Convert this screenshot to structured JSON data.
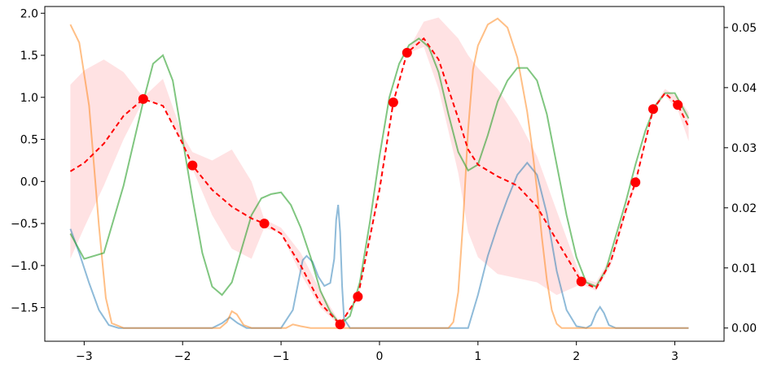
{
  "chart_data": {
    "type": "line",
    "title": "",
    "xlabel": "",
    "ylabel": "",
    "y2label": "",
    "xlim": [
      -3.4,
      3.5
    ],
    "ylim": [
      -1.9,
      2.08
    ],
    "y2lim": [
      -0.0022,
      0.0535
    ],
    "xticks": [
      -3,
      -2,
      -1,
      0,
      1,
      2,
      3
    ],
    "xtick_labels": [
      "−3",
      "−2",
      "−1",
      "0",
      "1",
      "2",
      "3"
    ],
    "yticks": [
      -1.5,
      -1.0,
      -0.5,
      0.0,
      0.5,
      1.0,
      1.5,
      2.0
    ],
    "ytick_labels": [
      "−1.5",
      "−1.0",
      "−0.5",
      "0.0",
      "0.5",
      "1.0",
      "1.5",
      "2.0"
    ],
    "y2ticks": [
      0.0,
      0.01,
      0.02,
      0.03,
      0.04,
      0.05
    ],
    "y2tick_labels": [
      "0.00",
      "0.01",
      "0.02",
      "0.03",
      "0.04",
      "0.05"
    ],
    "grid": false,
    "colors": {
      "mean": "#ff0000",
      "band": "#ffb6b9",
      "green": "#2ca02c",
      "blue": "#1f77b4",
      "orange": "#ff7f0e",
      "points": "#ff0000"
    },
    "observations": {
      "x": [
        -2.4,
        -1.9,
        -1.17,
        -0.4,
        -0.22,
        0.14,
        0.28,
        2.05,
        2.6,
        2.78,
        3.03
      ],
      "y": [
        0.98,
        0.19,
        -0.5,
        -1.7,
        -1.37,
        0.94,
        1.53,
        -1.19,
        -0.01,
        0.86,
        0.91
      ]
    },
    "series": [
      {
        "x": [
          -3.14,
          -3.0,
          -2.8,
          -2.6,
          -2.4,
          -2.2,
          -2.0,
          -1.9,
          -1.7,
          -1.5,
          -1.3,
          -1.17,
          -1.0,
          -0.8,
          -0.6,
          -0.4,
          -0.22,
          0.0,
          0.14,
          0.28,
          0.45,
          0.6,
          0.8,
          0.9,
          1.0,
          1.2,
          1.4,
          1.6,
          1.8,
          2.05,
          2.2,
          2.35,
          2.5,
          2.6,
          2.78,
          2.9,
          3.03,
          3.14
        ],
        "y": [
          0.12,
          0.22,
          0.45,
          0.78,
          0.98,
          0.9,
          0.45,
          0.19,
          -0.1,
          -0.3,
          -0.44,
          -0.5,
          -0.62,
          -1.0,
          -1.45,
          -1.7,
          -1.37,
          -0.1,
          0.94,
          1.53,
          1.7,
          1.45,
          0.75,
          0.38,
          0.2,
          0.06,
          -0.05,
          -0.3,
          -0.7,
          -1.19,
          -1.27,
          -0.95,
          -0.35,
          -0.01,
          0.86,
          1.05,
          0.91,
          0.65
        ],
        "y_lower": [
          -0.92,
          -0.55,
          -0.05,
          0.5,
          0.96,
          0.92,
          0.45,
          0.15,
          -0.4,
          -0.8,
          -0.92,
          -0.55,
          -0.62,
          -1.1,
          -1.5,
          -1.72,
          -1.38,
          -0.1,
          0.93,
          1.52,
          1.6,
          1.1,
          0.1,
          -0.6,
          -0.9,
          -1.1,
          -1.15,
          -1.2,
          -1.35,
          -1.22,
          -1.3,
          -1.0,
          -0.4,
          -0.05,
          0.85,
          1.02,
          0.85,
          0.48
        ],
        "y_upper": [
          1.15,
          1.32,
          1.45,
          1.3,
          1.0,
          1.22,
          0.55,
          0.35,
          0.25,
          0.38,
          0.0,
          -0.45,
          -0.55,
          -0.85,
          -1.3,
          -1.68,
          -1.35,
          0.0,
          0.95,
          1.54,
          1.9,
          1.95,
          1.7,
          1.5,
          1.35,
          1.1,
          0.75,
          0.3,
          -0.35,
          -1.15,
          -1.2,
          -0.9,
          -0.3,
          0.03,
          0.88,
          1.1,
          1.0,
          0.82
        ],
        "axis": "left"
      },
      {
        "x": [
          -3.14,
          -3.0,
          -2.8,
          -2.6,
          -2.4,
          -2.3,
          -2.2,
          -2.1,
          -2.0,
          -1.9,
          -1.8,
          -1.7,
          -1.6,
          -1.5,
          -1.4,
          -1.3,
          -1.2,
          -1.1,
          -1.0,
          -0.9,
          -0.8,
          -0.7,
          -0.6,
          -0.5,
          -0.4,
          -0.3,
          -0.2,
          -0.1,
          0.0,
          0.1,
          0.2,
          0.3,
          0.4,
          0.5,
          0.6,
          0.7,
          0.8,
          0.9,
          1.0,
          1.1,
          1.2,
          1.3,
          1.4,
          1.5,
          1.6,
          1.7,
          1.8,
          1.9,
          2.0,
          2.1,
          2.2,
          2.3,
          2.4,
          2.5,
          2.6,
          2.7,
          2.8,
          2.9,
          3.0,
          3.14
        ],
        "y": [
          -0.62,
          -0.92,
          -0.85,
          -0.05,
          0.95,
          1.4,
          1.5,
          1.2,
          0.5,
          -0.2,
          -0.85,
          -1.25,
          -1.35,
          -1.2,
          -0.8,
          -0.4,
          -0.2,
          -0.15,
          -0.13,
          -0.28,
          -0.55,
          -0.9,
          -1.3,
          -1.55,
          -1.7,
          -1.6,
          -1.2,
          -0.5,
          0.3,
          1.0,
          1.4,
          1.62,
          1.7,
          1.6,
          1.3,
          0.8,
          0.35,
          0.13,
          0.2,
          0.55,
          0.95,
          1.2,
          1.35,
          1.35,
          1.2,
          0.8,
          0.2,
          -0.4,
          -0.9,
          -1.2,
          -1.25,
          -1.05,
          -0.65,
          -0.25,
          0.2,
          0.6,
          0.9,
          1.05,
          1.05,
          0.75
        ],
        "axis": "left"
      },
      {
        "x": [
          -3.14,
          -3.05,
          -2.95,
          -2.85,
          -2.75,
          -2.65,
          -2.5,
          -2.0,
          -1.7,
          -1.6,
          -1.52,
          -1.44,
          -1.35,
          -1.3,
          -1.0,
          -0.88,
          -0.82,
          -0.78,
          -0.74,
          -0.68,
          -0.62,
          -0.56,
          -0.5,
          -0.46,
          -0.44,
          -0.42,
          -0.4,
          -0.38,
          -0.36,
          -0.3,
          0.0,
          0.5,
          0.9,
          1.0,
          1.1,
          1.2,
          1.3,
          1.4,
          1.5,
          1.6,
          1.7,
          1.8,
          1.9,
          2.0,
          2.1,
          2.15,
          2.2,
          2.24,
          2.28,
          2.33,
          2.4,
          3.14
        ],
        "y": [
          0.0165,
          0.0125,
          0.0075,
          0.003,
          0.0005,
          0.0,
          0.0,
          0.0,
          0.0,
          0.0008,
          0.0018,
          0.0008,
          0.0,
          0.0,
          0.0,
          0.003,
          0.008,
          0.0113,
          0.012,
          0.011,
          0.0085,
          0.007,
          0.0075,
          0.0115,
          0.018,
          0.0205,
          0.016,
          0.007,
          0.0015,
          0.0,
          0.0,
          0.0,
          0.0,
          0.0055,
          0.012,
          0.017,
          0.0215,
          0.0255,
          0.0275,
          0.0255,
          0.019,
          0.0095,
          0.003,
          0.0003,
          0.0,
          0.0005,
          0.0025,
          0.0035,
          0.0025,
          0.0005,
          0.0,
          0.0
        ],
        "axis": "right"
      },
      {
        "x": [
          -3.14,
          -3.05,
          -2.95,
          -2.85,
          -2.78,
          -2.72,
          -2.6,
          -2.0,
          -1.62,
          -1.55,
          -1.5,
          -1.45,
          -1.38,
          -1.3,
          -0.95,
          -0.88,
          -0.8,
          -0.7,
          -0.4,
          0.0,
          0.5,
          0.7,
          0.75,
          0.8,
          0.85,
          0.9,
          0.95,
          1.0,
          1.1,
          1.2,
          1.3,
          1.4,
          1.5,
          1.55,
          1.6,
          1.65,
          1.7,
          1.75,
          1.8,
          1.85,
          3.14
        ],
        "y": [
          0.0505,
          0.0475,
          0.037,
          0.017,
          0.005,
          0.0008,
          0.0,
          0.0,
          0.0,
          0.001,
          0.0028,
          0.0023,
          0.0005,
          0.0,
          0.0,
          0.0006,
          0.0003,
          0.0,
          0.0,
          0.0,
          0.0,
          0.0,
          0.001,
          0.006,
          0.018,
          0.033,
          0.043,
          0.047,
          0.0505,
          0.0515,
          0.05,
          0.045,
          0.036,
          0.03,
          0.023,
          0.015,
          0.008,
          0.003,
          0.0007,
          0.0,
          0.0
        ],
        "axis": "right"
      }
    ]
  }
}
